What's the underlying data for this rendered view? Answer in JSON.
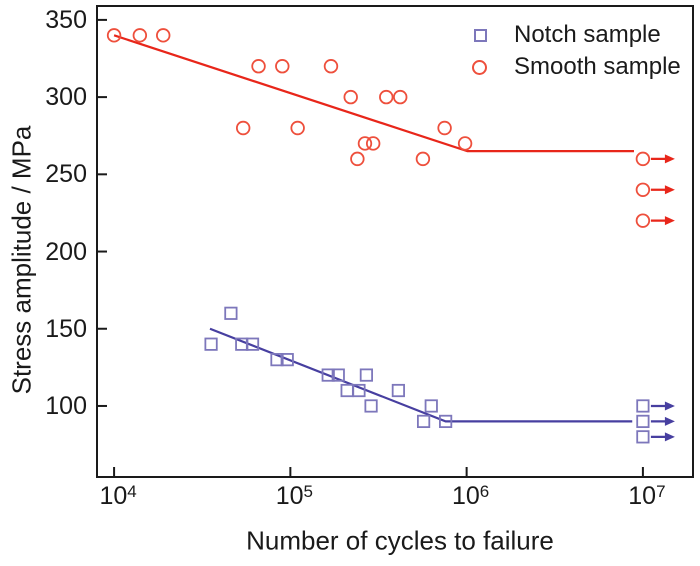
{
  "chart_data": {
    "type": "scatter",
    "title": "",
    "xlabel": "Number of cycles to failure",
    "ylabel": "Stress amplitude / MPa",
    "x_scale": "log10",
    "grid": false,
    "x_ticks": [
      {
        "base": "10",
        "exp": "4",
        "value": 10000
      },
      {
        "base": "10",
        "exp": "5",
        "value": 100000
      },
      {
        "base": "10",
        "exp": "6",
        "value": 1000000
      },
      {
        "base": "10",
        "exp": "7",
        "value": 10000000
      }
    ],
    "y_ticks": [
      350,
      300,
      250,
      200,
      150,
      100
    ],
    "xlim": [
      8000,
      19240000
    ],
    "ylim": [
      54,
      359
    ],
    "axis_color": "#1a1a1a",
    "series": [
      {
        "name": "Smooth sample",
        "marker": "circle",
        "marker_color": "#ee4f3c",
        "line_color": "#e8261a",
        "points": [
          [
            10000,
            340
          ],
          [
            14000,
            340
          ],
          [
            19000,
            340
          ],
          [
            54000,
            280
          ],
          [
            66000,
            320
          ],
          [
            90000,
            320
          ],
          [
            110000,
            280
          ],
          [
            170000,
            320
          ],
          [
            220000,
            300
          ],
          [
            240000,
            260
          ],
          [
            265000,
            270
          ],
          [
            295000,
            270
          ],
          [
            350000,
            300
          ],
          [
            420000,
            300
          ],
          [
            565000,
            260
          ],
          [
            750000,
            280
          ],
          [
            980000,
            270
          ]
        ],
        "runout_points": [
          [
            10000000,
            260
          ],
          [
            10000000,
            240
          ],
          [
            10000000,
            220
          ]
        ],
        "trend_line": [
          [
            10000,
            340
          ],
          [
            1010000,
            265
          ],
          [
            8900000,
            265
          ]
        ]
      },
      {
        "name": "Notch sample",
        "marker": "square",
        "marker_color": "#7d77bb",
        "line_color": "#473fa0",
        "points": [
          [
            35500,
            140
          ],
          [
            46000,
            160
          ],
          [
            53000,
            140
          ],
          [
            61000,
            140
          ],
          [
            84000,
            130
          ],
          [
            96000,
            130
          ],
          [
            164000,
            120
          ],
          [
            187000,
            120
          ],
          [
            210000,
            110
          ],
          [
            245000,
            110
          ],
          [
            270000,
            120
          ],
          [
            287000,
            100
          ],
          [
            410000,
            110
          ],
          [
            570000,
            90
          ],
          [
            630000,
            100
          ],
          [
            760000,
            90
          ]
        ],
        "runout_points": [
          [
            10000000,
            100
          ],
          [
            10000000,
            90
          ],
          [
            10000000,
            80
          ]
        ],
        "trend_line": [
          [
            35000,
            150
          ],
          [
            760000,
            90
          ],
          [
            8700000,
            90
          ]
        ]
      }
    ],
    "legend": {
      "position": "top-right",
      "items": [
        {
          "label": "Notch sample",
          "marker": "square",
          "color": "#7d77bb"
        },
        {
          "label": "Smooth sample",
          "marker": "circle",
          "color": "#ee4f3c"
        }
      ]
    }
  }
}
